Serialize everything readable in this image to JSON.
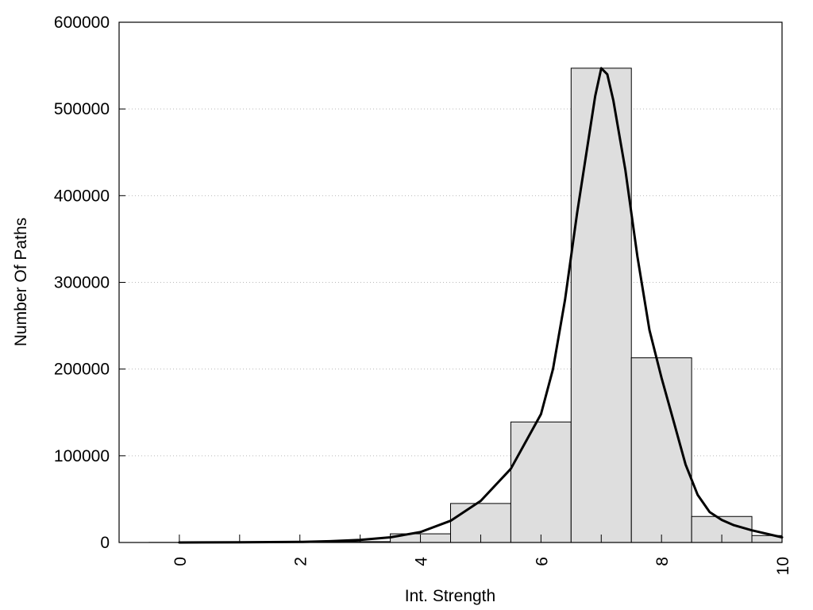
{
  "chart_data": {
    "type": "bar",
    "title": "",
    "xlabel": "Int. Strength",
    "ylabel": "Number Of Paths",
    "xlim": [
      -1,
      10
    ],
    "ylim": [
      0,
      600000
    ],
    "grid": "horizontal dotted",
    "x_ticks": [
      0,
      2,
      4,
      6,
      8,
      10
    ],
    "y_ticks": [
      0,
      100000,
      200000,
      300000,
      400000,
      500000,
      600000
    ],
    "x_tick_labels": [
      "0",
      "2",
      "4",
      "6",
      "8",
      "10"
    ],
    "y_tick_labels": [
      "0",
      "100000",
      "200000",
      "300000",
      "400000",
      "500000",
      "600000"
    ],
    "bars": [
      {
        "x": 0,
        "value": 100
      },
      {
        "x": 1,
        "value": 100
      },
      {
        "x": 2,
        "value": 300
      },
      {
        "x": 3,
        "value": 1000
      },
      {
        "x": 4,
        "value": 10000
      },
      {
        "x": 5,
        "value": 45000
      },
      {
        "x": 6,
        "value": 139000
      },
      {
        "x": 7,
        "value": 547000
      },
      {
        "x": 8,
        "value": 213000
      },
      {
        "x": 9,
        "value": 30000
      },
      {
        "x": 10,
        "value": 8000
      }
    ],
    "bar_width": 1,
    "bar_color": "#dedede",
    "curve": {
      "x": [
        0,
        1,
        2,
        2.5,
        3,
        3.5,
        4,
        4.5,
        5,
        5.5,
        6,
        6.2,
        6.4,
        6.6,
        6.8,
        6.9,
        7.0,
        7.1,
        7.2,
        7.4,
        7.6,
        7.8,
        8,
        8.2,
        8.4,
        8.6,
        8.8,
        9.0,
        9.2,
        9.5,
        10
      ],
      "y": [
        0,
        200,
        600,
        1500,
        3000,
        6000,
        12000,
        25000,
        48000,
        85000,
        148000,
        200000,
        280000,
        380000,
        470000,
        515000,
        547000,
        540000,
        510000,
        430000,
        330000,
        245000,
        190000,
        140000,
        90000,
        55000,
        35000,
        26000,
        20000,
        14000,
        6000
      ]
    },
    "curve_color": "#000000"
  }
}
